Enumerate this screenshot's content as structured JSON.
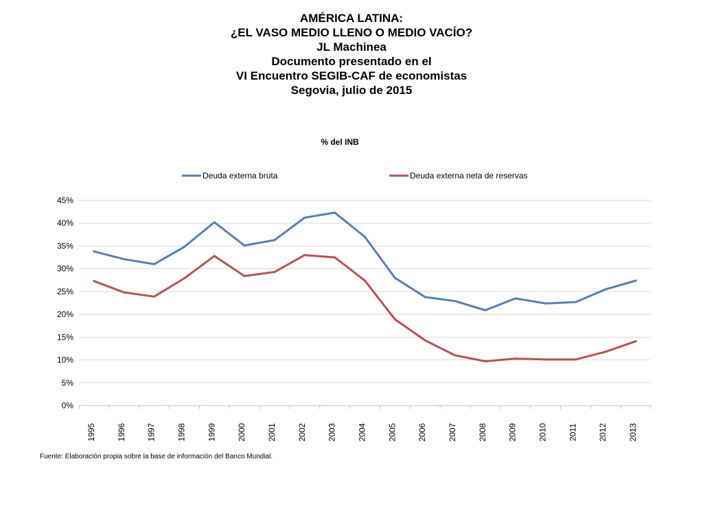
{
  "header": {
    "lines": [
      "AMÉRICA LATINA:",
      "¿EL VASO MEDIO LLENO O MEDIO VACÍO?",
      "JL Machinea",
      "Documento presentado en el",
      "VI Encuentro SEGIB-CAF de economistas",
      "Segovia, julio de 2015"
    ]
  },
  "source_note": "Fuente: Elaboración propia sobre la base de información del Banco Mundial.",
  "chart_data": {
    "type": "line",
    "title": "% del INB",
    "xlabel": "",
    "ylabel": "",
    "x": [
      "1995",
      "1996",
      "1997",
      "1998",
      "1999",
      "2000",
      "2001",
      "2002",
      "2003",
      "2004",
      "2005",
      "2006",
      "2007",
      "2008",
      "2009",
      "2010",
      "2011",
      "2012",
      "2013"
    ],
    "ylim": [
      0,
      45
    ],
    "y_ticks": [
      0,
      5,
      10,
      15,
      20,
      25,
      30,
      35,
      40,
      45
    ],
    "y_tick_format": "%",
    "grid": true,
    "legend_position": "top",
    "series": [
      {
        "name": "Deuda externa bruta",
        "color": "#4F81BD",
        "values": [
          33.8,
          32.1,
          31.0,
          34.8,
          40.2,
          35.1,
          36.3,
          41.2,
          42.3,
          37.0,
          28.0,
          23.8,
          22.9,
          20.9,
          23.5,
          22.4,
          22.7,
          25.5,
          27.4
        ]
      },
      {
        "name": "Deuda externa neta de reservas",
        "color": "#C0504D",
        "values": [
          27.3,
          24.8,
          23.9,
          27.9,
          32.8,
          28.4,
          29.3,
          33.0,
          32.5,
          27.4,
          18.9,
          14.3,
          11.0,
          9.7,
          10.3,
          10.1,
          10.1,
          11.8,
          14.1
        ]
      }
    ]
  }
}
